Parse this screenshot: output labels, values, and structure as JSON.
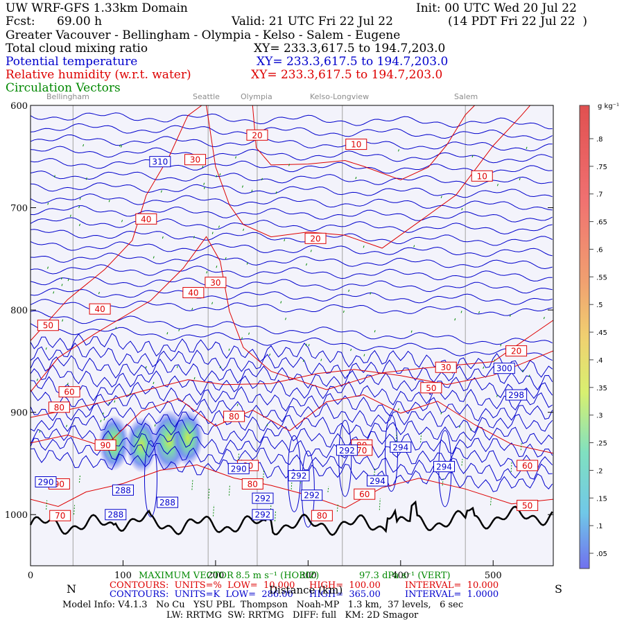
{
  "header": {
    "model": "UW WRF-GFS 1.33km Domain",
    "init": "Init: 00 UTC Wed 20 Jul 22",
    "fcst_label": "Fcst:",
    "fcst_value": "69.00 h",
    "valid": "Valid: 21 UTC Fri 22 Jul 22",
    "local": "(14 PDT Fri 22 Jul 22  )",
    "region": "Greater Vacouver - Bellingham - Olympia - Kelso - Salem - Eugene",
    "field1": "Total cloud mixing ratio",
    "field1_xy": "XY= 233.3,617.5 to 194.7,203.0",
    "field2": "Potential temperature",
    "field2_xy": "XY= 233.3,617.5 to 194.7,203.0",
    "field3": "Relative humidity (w.r.t. water)",
    "field3_xy": "XY= 233.3,617.5 to 194.7,203.0",
    "field4": "Circulation Vectors"
  },
  "colors": {
    "theta": "#0000cc",
    "rh": "#dd0000",
    "vectors": "#008800",
    "terrain": "#000000",
    "plot_bg": "#f3f3fb",
    "location_lines": "#b0b0b0"
  },
  "locations": [
    "Bellingham",
    "Seattle",
    "Olympia",
    "Kelso-Longview",
    "Salem"
  ],
  "footer": {
    "max_vector": "MAXIMUM VECTOR",
    "horiz": "8.5 m s⁻¹ (HORIZ)",
    "vert": "97.3 dPa s⁻¹ (VERT)",
    "rh_contours": "CONTOURS:  UNITS=%  LOW=  10.000",
    "rh_high": "HIGH=  100.00",
    "rh_interval": "INTERVAL=  10.000",
    "th_contours": "CONTOURS:  UNITS=K  LOW=  286.00",
    "th_high": "HIGH=  365.00",
    "th_interval": "INTERVAL=  1.0000",
    "north": "N",
    "south": "S",
    "x_axis_label": "Distance (km)",
    "model_info": "Model Info: V4.1.3   No Cu   YSU PBL  Thompson   Noah-MP   1.3 km,  37 levels,   6 sec",
    "model_info2": "LW: RRTMG  SW: RRTMG   DIFF: full   KM: 2D Smagor"
  },
  "chart_data": {
    "type": "cross-section contour",
    "y_axis": {
      "scale": "pressure (inverted)",
      "ylim": [
        1050,
        600
      ],
      "ticks": [
        600,
        700,
        800,
        900,
        1000
      ],
      "tick_labels": [
        "600",
        "700",
        "800",
        "900",
        "1000"
      ]
    },
    "x_axis": {
      "xlim": [
        0,
        565
      ],
      "ticks": [
        0,
        100,
        200,
        300,
        400,
        500
      ],
      "tick_labels": [
        "0",
        "100",
        "200",
        "300",
        "400",
        "500"
      ]
    },
    "location_x_km": [
      46,
      192,
      245,
      337,
      470
    ],
    "theta_labels": [
      {
        "x": 140,
        "p": 655,
        "text": "310"
      },
      {
        "x": 512,
        "p": 857,
        "text": "300"
      },
      {
        "x": 525,
        "p": 883,
        "text": "298"
      },
      {
        "x": 0,
        "p": 968,
        "text": "290"
      },
      {
        "x": 225,
        "p": 955,
        "text": "290"
      },
      {
        "x": 251,
        "p": 984,
        "text": "292"
      },
      {
        "x": 251,
        "p": 1000,
        "text": "292"
      },
      {
        "x": 290,
        "p": 962,
        "text": "292"
      },
      {
        "x": 304,
        "p": 981,
        "text": "292"
      },
      {
        "x": 342,
        "p": 937,
        "text": "292"
      },
      {
        "x": 400,
        "p": 934,
        "text": "294"
      },
      {
        "x": 375,
        "p": 967,
        "text": "294"
      },
      {
        "x": 447,
        "p": 953,
        "text": "294"
      },
      {
        "x": 100,
        "p": 976,
        "text": "288"
      },
      {
        "x": 148,
        "p": 988,
        "text": "288"
      },
      {
        "x": 92,
        "p": 1000,
        "text": "288"
      }
    ],
    "rh_labels": [
      {
        "x": 245,
        "p": 629,
        "text": "20"
      },
      {
        "x": 352,
        "p": 638,
        "text": "10"
      },
      {
        "x": 488,
        "p": 669,
        "text": "10"
      },
      {
        "x": 178,
        "p": 653,
        "text": "30"
      },
      {
        "x": 125,
        "p": 711,
        "text": "40"
      },
      {
        "x": 308,
        "p": 730,
        "text": "20"
      },
      {
        "x": 200,
        "p": 773,
        "text": "30"
      },
      {
        "x": 176,
        "p": 783,
        "text": "40"
      },
      {
        "x": 75,
        "p": 799,
        "text": "40"
      },
      {
        "x": 19,
        "p": 815,
        "text": "50"
      },
      {
        "x": 525,
        "p": 840,
        "text": "20"
      },
      {
        "x": 449,
        "p": 856,
        "text": "30"
      },
      {
        "x": 433,
        "p": 876,
        "text": "50"
      },
      {
        "x": 42,
        "p": 880,
        "text": "60"
      },
      {
        "x": 31,
        "p": 895,
        "text": "80"
      },
      {
        "x": 220,
        "p": 904,
        "text": "80"
      },
      {
        "x": 81,
        "p": 932,
        "text": "90"
      },
      {
        "x": 358,
        "p": 932,
        "text": "80"
      },
      {
        "x": 358,
        "p": 937,
        "text": "70"
      },
      {
        "x": 235,
        "p": 952,
        "text": "80"
      },
      {
        "x": 31,
        "p": 970,
        "text": "90"
      },
      {
        "x": 240,
        "p": 970,
        "text": "80"
      },
      {
        "x": 361,
        "p": 980,
        "text": "60"
      },
      {
        "x": 32,
        "p": 1001,
        "text": "70"
      },
      {
        "x": 315,
        "p": 1001,
        "text": "80"
      },
      {
        "x": 537,
        "p": 952,
        "text": "60"
      },
      {
        "x": 537,
        "p": 991,
        "text": "50"
      }
    ],
    "colorbar": {
      "units": "g kg⁻¹",
      "ticks": [
        ".05",
        ".1",
        ".15",
        ".2",
        ".25",
        ".3",
        ".35",
        ".4",
        ".45",
        ".5",
        ".55",
        ".6",
        ".65",
        ".7",
        ".75",
        ".8"
      ]
    }
  }
}
